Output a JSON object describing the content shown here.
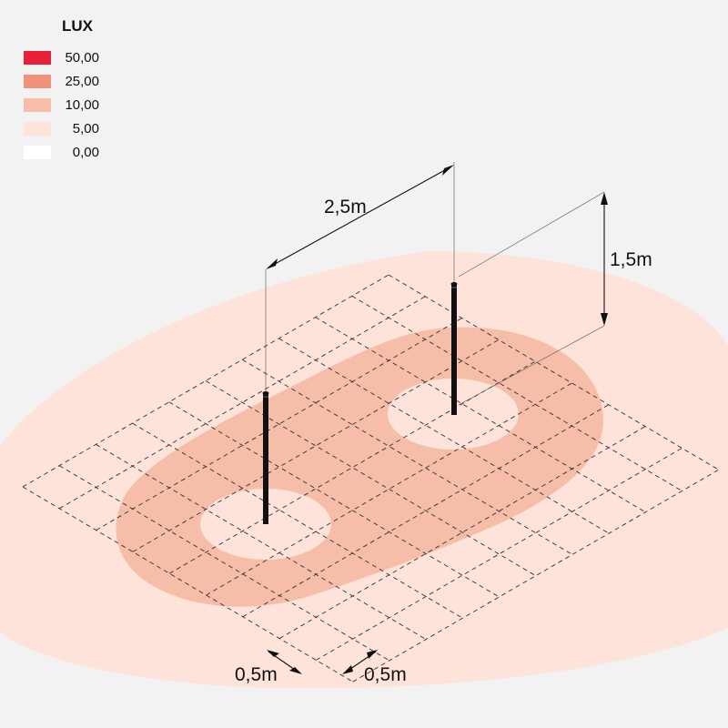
{
  "legend": {
    "title": "LUX",
    "items": [
      {
        "value": "50,00",
        "color": "#e8203a"
      },
      {
        "value": "25,00",
        "color": "#f0917a"
      },
      {
        "value": "10,00",
        "color": "#f6bda8"
      },
      {
        "value": "5,00",
        "color": "#fde3d9"
      },
      {
        "value": "0,00",
        "color": "#ffffff"
      }
    ]
  },
  "dimensions": {
    "pole_spacing": "2,5m",
    "pole_height": "1,5m",
    "grid_cell_a": "0,5m",
    "grid_cell_b": "0,5m"
  },
  "zones": {
    "outer_color": "#fde3d9",
    "inner_color": "#f6bda8",
    "center_color": "#fde3d9"
  }
}
